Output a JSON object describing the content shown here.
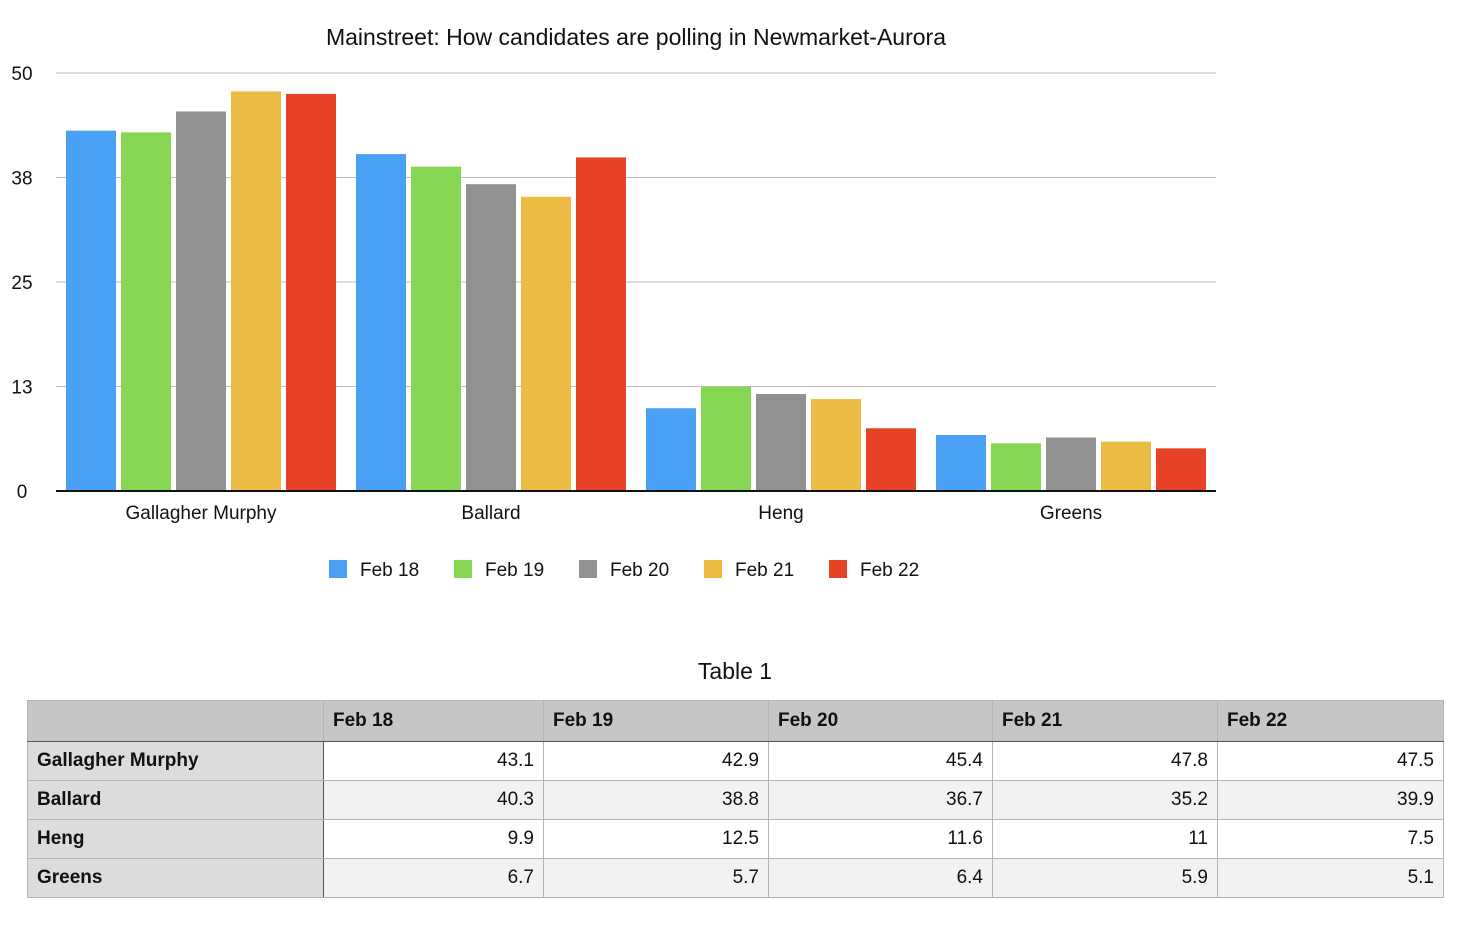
{
  "chart_data": {
    "type": "bar",
    "title": "Mainstreet: How candidates are polling in Newmarket-Aurora",
    "categories": [
      "Gallagher Murphy",
      "Ballard",
      "Heng",
      "Greens"
    ],
    "series": [
      {
        "name": "Feb 18",
        "color": "#4aa0f5",
        "values": [
          43.1,
          40.3,
          9.9,
          6.7
        ]
      },
      {
        "name": "Feb 19",
        "color": "#86d553",
        "values": [
          42.9,
          38.8,
          12.5,
          5.7
        ]
      },
      {
        "name": "Feb 20",
        "color": "#919191",
        "values": [
          45.4,
          36.7,
          11.6,
          6.4
        ]
      },
      {
        "name": "Feb 21",
        "color": "#ebbb43",
        "values": [
          47.8,
          35.2,
          11,
          5.9
        ]
      },
      {
        "name": "Feb 22",
        "color": "#e64326",
        "values": [
          47.5,
          39.9,
          7.5,
          5.1
        ]
      }
    ],
    "yticks": [
      "0",
      "13",
      "25",
      "38",
      "50"
    ],
    "ylim": [
      0,
      50
    ],
    "grid": true,
    "legend": "bottom",
    "xlabel": "",
    "ylabel": ""
  },
  "table": {
    "caption": "Table 1",
    "columns": [
      "Feb 18",
      "Feb 19",
      "Feb 20",
      "Feb 21",
      "Feb 22"
    ],
    "rows": [
      {
        "label": "Gallagher Murphy",
        "values": [
          "43.1",
          "42.9",
          "45.4",
          "47.8",
          "47.5"
        ]
      },
      {
        "label": "Ballard",
        "values": [
          "40.3",
          "38.8",
          "36.7",
          "35.2",
          "39.9"
        ]
      },
      {
        "label": "Heng",
        "values": [
          "9.9",
          "12.5",
          "11.6",
          "11",
          "7.5"
        ]
      },
      {
        "label": "Greens",
        "values": [
          "6.7",
          "5.7",
          "6.4",
          "5.9",
          "5.1"
        ]
      }
    ]
  }
}
